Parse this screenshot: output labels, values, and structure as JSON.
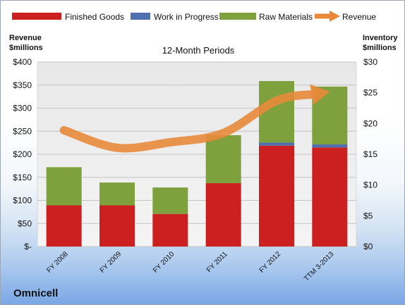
{
  "chart_data": {
    "type": "bar",
    "subtitle": "12-Month Periods",
    "company": "Omnicell",
    "categories": [
      "FY 2008",
      "FY 2009",
      "FY 2010",
      "FY 2011",
      "FY 2012",
      "TTM 3-2013"
    ],
    "left_axis": {
      "title": [
        "Revenue",
        "$millions"
      ],
      "ylim": [
        0,
        400
      ],
      "ticks": [
        0,
        50,
        100,
        150,
        200,
        250,
        300,
        350,
        400
      ],
      "tick_labels": [
        "$-",
        "$50",
        "$100",
        "$150",
        "$200",
        "$250",
        "$300",
        "$350",
        "$400"
      ]
    },
    "right_axis": {
      "title": [
        "Inventory",
        "$millions"
      ],
      "ylim": [
        0,
        30
      ],
      "ticks": [
        0,
        5,
        10,
        15,
        20,
        25,
        30
      ],
      "tick_labels": [
        "$0",
        "$5",
        "$10",
        "$15",
        "$20",
        "$25",
        "$30"
      ]
    },
    "series": [
      {
        "name": "Finished Goods",
        "type": "stacked-bar",
        "axis": "right",
        "color": "#cc1f1f",
        "values": [
          6.7,
          6.7,
          5.3,
          10.3,
          16.4,
          16.1
        ]
      },
      {
        "name": "Work in Progress",
        "type": "stacked-bar",
        "axis": "right",
        "color": "#4f6fae",
        "values": [
          0,
          0,
          0,
          0,
          0.5,
          0.5
        ]
      },
      {
        "name": "Raw Materials",
        "type": "stacked-bar",
        "axis": "right",
        "color": "#7ea13e",
        "values": [
          6.2,
          3.7,
          4.3,
          7.8,
          10.0,
          9.4
        ]
      },
      {
        "name": "Revenue",
        "type": "line-arrow",
        "axis": "left",
        "color": "#e8893a",
        "values": [
          252,
          214,
          226,
          246,
          316,
          336
        ]
      }
    ],
    "grid": true,
    "legend_position": "top"
  }
}
